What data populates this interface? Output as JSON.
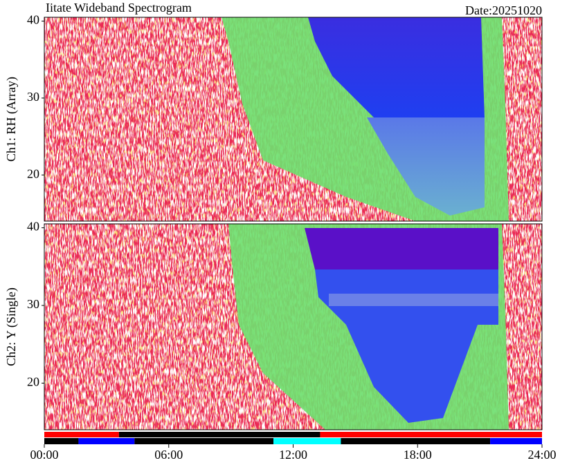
{
  "chart_data": {
    "type": "spectrogram",
    "title": "Iitate Wideband Spectrogram",
    "date": "Date:20251020",
    "xlim": [
      0,
      24
    ],
    "xticks": [
      {
        "value": 0,
        "label": "00:00"
      },
      {
        "value": 6,
        "label": "06:00"
      },
      {
        "value": 12,
        "label": "12:00"
      },
      {
        "value": 18,
        "label": "18:00"
      },
      {
        "value": 24,
        "label": "24:00"
      }
    ],
    "panels": [
      {
        "ylabel": "Ch1: RH (Array)",
        "ylim": [
          14,
          40.5
        ],
        "yticks": [
          20,
          30,
          40
        ]
      },
      {
        "ylabel": "Ch2: Y (Single)",
        "ylim": [
          14,
          40.5
        ],
        "yticks": [
          20,
          30,
          40
        ]
      }
    ],
    "status_bars": [
      [
        {
          "start": 0,
          "end": 3.6,
          "color": "#ff0000"
        },
        {
          "start": 3.6,
          "end": 13.3,
          "color": "#000000"
        },
        {
          "start": 13.3,
          "end": 24,
          "color": "#ff0000"
        }
      ],
      [
        {
          "start": 0,
          "end": 1.65,
          "color": "#000000"
        },
        {
          "start": 1.65,
          "end": 4.35,
          "color": "#0000ff"
        },
        {
          "start": 4.35,
          "end": 11.05,
          "color": "#000000"
        },
        {
          "start": 11.05,
          "end": 14.3,
          "color": "#00ffff"
        },
        {
          "start": 14.3,
          "end": 21.5,
          "color": "#000000"
        },
        {
          "start": 21.5,
          "end": 24,
          "color": "#0000ff"
        }
      ]
    ]
  }
}
